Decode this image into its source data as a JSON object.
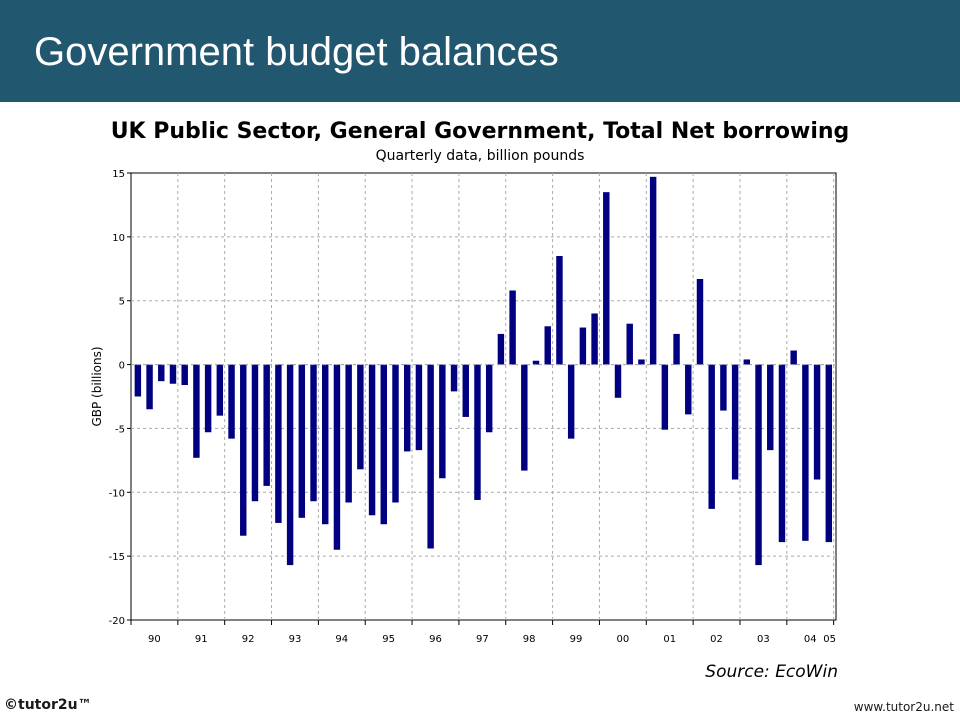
{
  "slide": {
    "title": "Government budget balances"
  },
  "footer": {
    "brand": "©tutor2u™",
    "url": "www.tutor2u.net"
  },
  "colors": {
    "header_bg": "#215870",
    "bar": "#000080"
  },
  "chart_data": {
    "type": "bar",
    "title": "UK Public Sector, General Government, Total Net borrowing",
    "subtitle": "Quarterly data, billion pounds",
    "ylabel": "GBP (billions)",
    "xlabel": "",
    "source": "Source: EcoWin",
    "ylim": [
      -20,
      15
    ],
    "yticks": [
      15,
      10,
      5,
      0,
      -5,
      -10,
      -15,
      -20
    ],
    "grid": true,
    "x_tick_labels": [
      "90",
      "91",
      "92",
      "93",
      "94",
      "95",
      "96",
      "97",
      "98",
      "99",
      "00",
      "01",
      "02",
      "03",
      "04",
      "05"
    ],
    "x_start": "1990 Q1",
    "frequency": "quarterly",
    "values": [
      -2.5,
      -3.5,
      -1.3,
      -1.5,
      -1.6,
      -7.3,
      -5.3,
      -4.0,
      -5.8,
      -13.4,
      -10.7,
      -9.5,
      -12.4,
      -15.7,
      -12.0,
      -10.7,
      -12.5,
      -14.5,
      -10.8,
      -8.2,
      -11.8,
      -12.5,
      -10.8,
      -6.8,
      -6.7,
      -14.4,
      -8.9,
      -2.1,
      -4.1,
      -10.6,
      -5.3,
      2.4,
      5.8,
      -8.3,
      0.3,
      3.0,
      8.5,
      -5.8,
      2.9,
      4.0,
      13.5,
      -2.6,
      3.2,
      0.4,
      14.7,
      -5.1,
      2.4,
      -3.9,
      6.7,
      -11.3,
      -3.6,
      -9.0,
      0.4,
      -15.7,
      -6.7,
      -13.9,
      1.1,
      -13.8,
      -9.0,
      -13.9
    ]
  }
}
